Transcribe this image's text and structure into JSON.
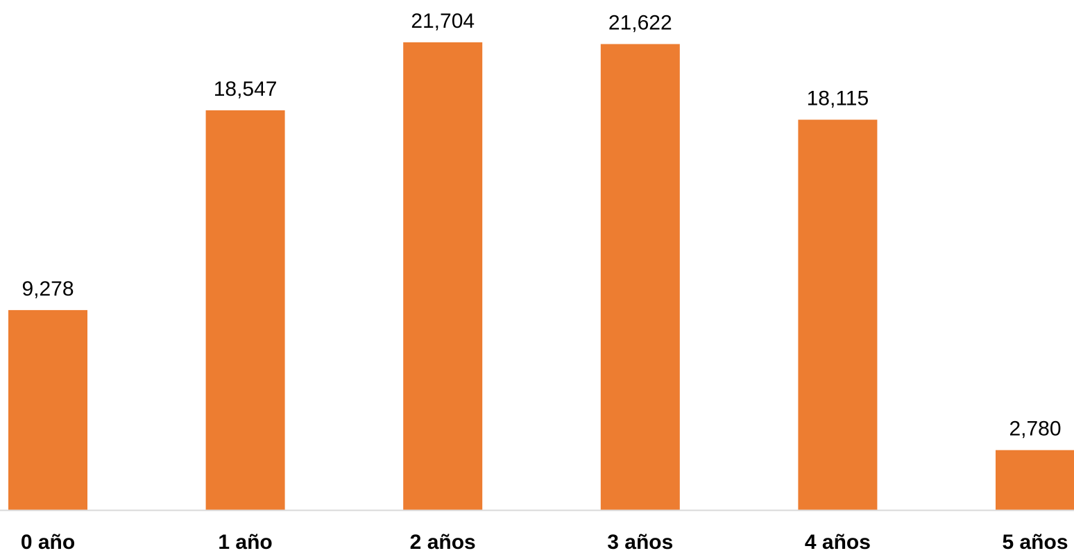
{
  "chart_data": {
    "type": "bar",
    "categories": [
      "0 año",
      "1 año",
      "2 años",
      "3 años",
      "4 años",
      "5 años"
    ],
    "values": [
      9278,
      18547,
      21704,
      21622,
      18115,
      2780
    ],
    "value_labels": [
      "9,278",
      "18,547",
      "21,704",
      "21,622",
      "18,115",
      "2,780"
    ],
    "title": "",
    "xlabel": "",
    "ylabel": "",
    "ylim": [
      0,
      21704
    ],
    "grid": false,
    "legend": "none",
    "bar_color": "#ED7D31",
    "axis_color": "#D9D9D9"
  }
}
